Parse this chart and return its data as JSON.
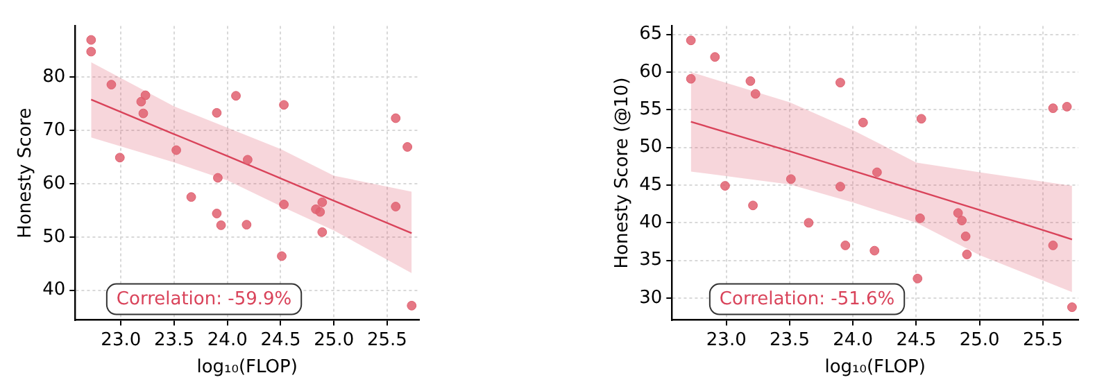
{
  "chart_data": [
    {
      "type": "scatter",
      "xlabel": "log₁₀(FLOP)",
      "ylabel": "Honesty Score",
      "xlim": [
        22.57,
        25.8
      ],
      "ylim": [
        34.4,
        89.6
      ],
      "xticks": [
        {
          "value": 23,
          "label": "23.0"
        },
        {
          "value": 23.5,
          "label": "23.5"
        },
        {
          "value": 24,
          "label": "24.0"
        },
        {
          "value": 24.5,
          "label": "24.5"
        },
        {
          "value": 25,
          "label": "25.0"
        },
        {
          "value": 25.5,
          "label": "25.5"
        }
      ],
      "yticks": [
        40,
        50,
        60,
        70,
        80
      ],
      "grid": true,
      "legend": false,
      "annotations": [
        "Correlation: -59.9%"
      ],
      "series": [
        {
          "marker": "circle",
          "color": "#e06070",
          "x": [
            22.72,
            22.72,
            22.91,
            22.99,
            23.19,
            23.21,
            23.23,
            23.52,
            23.66,
            23.9,
            23.9,
            23.91,
            23.94,
            24.08,
            24.18,
            24.19,
            24.51,
            24.53,
            24.53,
            24.83,
            24.87,
            24.89,
            24.89,
            25.58,
            25.58,
            25.69,
            25.73
          ],
          "values": [
            87.0,
            84.8,
            78.6,
            64.9,
            75.4,
            73.2,
            76.6,
            66.3,
            57.5,
            73.3,
            54.4,
            61.1,
            52.2,
            76.5,
            52.3,
            64.5,
            46.4,
            74.8,
            56.1,
            55.2,
            54.7,
            56.5,
            50.9,
            72.3,
            55.7,
            66.9,
            37.1
          ]
        },
        {
          "type": "line",
          "color": "#d9435a",
          "x": [
            22.72,
            23.5,
            24.0,
            24.5,
            25.0,
            25.73
          ],
          "values": [
            75.8,
            69.3,
            65.2,
            61.0,
            56.8,
            50.7
          ],
          "upper": [
            82.8,
            74.5,
            70.5,
            66.5,
            61.5,
            58.5
          ],
          "lower": [
            68.7,
            64.0,
            60.6,
            55.8,
            51.2,
            43.2
          ]
        }
      ]
    },
    {
      "type": "scatter",
      "xlabel": "log₁₀(FLOP)",
      "ylabel": "Honesty Score (@10)",
      "xlim": [
        22.57,
        25.78
      ],
      "ylim": [
        27.1,
        66.1
      ],
      "xticks": [
        {
          "value": 23,
          "label": "23.0"
        },
        {
          "value": 23.5,
          "label": "23.5"
        },
        {
          "value": 24,
          "label": "24.0"
        },
        {
          "value": 24.5,
          "label": "24.5"
        },
        {
          "value": 25,
          "label": "25.0"
        },
        {
          "value": 25.5,
          "label": "25.5"
        }
      ],
      "yticks": [
        30,
        35,
        40,
        45,
        50,
        55,
        60,
        65
      ],
      "grid": true,
      "legend": false,
      "annotations": [
        "Correlation: -51.6%"
      ],
      "series": [
        {
          "marker": "circle",
          "color": "#e06070",
          "x": [
            22.72,
            22.72,
            22.91,
            22.99,
            23.19,
            23.21,
            23.23,
            23.51,
            23.65,
            23.9,
            23.9,
            23.94,
            24.08,
            24.17,
            24.19,
            24.51,
            24.53,
            24.54,
            24.83,
            24.86,
            24.89,
            24.9,
            25.58,
            25.58,
            25.69,
            25.73
          ],
          "values": [
            64.2,
            59.1,
            62.0,
            44.9,
            58.8,
            42.3,
            57.1,
            45.8,
            40.0,
            58.6,
            44.8,
            37.0,
            53.3,
            36.3,
            46.7,
            32.6,
            40.6,
            53.8,
            41.3,
            40.3,
            38.2,
            35.8,
            37.0,
            55.2,
            55.4,
            28.8
          ]
        },
        {
          "type": "line",
          "color": "#d9435a",
          "x": [
            22.72,
            23.5,
            24.0,
            24.5,
            25.0,
            25.73
          ],
          "values": [
            53.4,
            49.5,
            46.9,
            44.3,
            41.7,
            37.8
          ],
          "upper": [
            60.0,
            56.0,
            52.3,
            48.0,
            46.7,
            44.9
          ],
          "lower": [
            46.8,
            45.1,
            42.7,
            40.0,
            35.7,
            30.8
          ]
        }
      ]
    }
  ]
}
